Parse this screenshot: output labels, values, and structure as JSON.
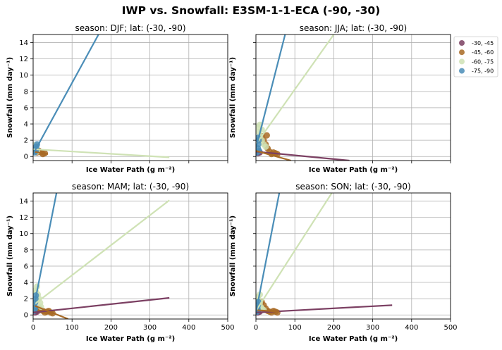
{
  "figure": {
    "title": "IWP vs. Snowfall: E3SM-1-1-ECA  (-90, -30)"
  },
  "legend": {
    "placement": "right",
    "entries": [
      {
        "label": "-30, -45",
        "color": "#7b3f62"
      },
      {
        "label": "-45, -60",
        "color": "#a86a25"
      },
      {
        "label": "-60, -75",
        "color": "#cfe2b5"
      },
      {
        "label": "-75, -90",
        "color": "#4a8db7"
      }
    ]
  },
  "chart_data": [
    {
      "type": "scatter",
      "title": "season: DJF; lat: (-30, -90)",
      "xlabel": "Ice Water Path (g m⁻²)",
      "ylabel": "Snowfall (mm day⁻¹)",
      "xlim": [
        0,
        500
      ],
      "ylim": [
        -0.5,
        15
      ],
      "xticks": [
        0,
        100,
        200,
        300,
        400,
        500
      ],
      "yticks": [
        0,
        2,
        4,
        6,
        8,
        10,
        12,
        14
      ],
      "grid": true,
      "show_xticklabels": false,
      "show_yticklabels": true,
      "series": [
        {
          "color": "#a86a25",
          "points": [
            [
              10,
              0.5
            ],
            [
              15,
              0.7
            ],
            [
              20,
              0.5
            ],
            [
              25,
              0.3
            ],
            [
              30,
              0.4
            ]
          ],
          "fit": [
            [
              0,
              0.6
            ],
            [
              38,
              0.3
            ]
          ]
        },
        {
          "color": "#cfe2b5",
          "points": [
            [
              3,
              0.8
            ],
            [
              5,
              1.4
            ],
            [
              8,
              1.1
            ],
            [
              10,
              0.6
            ]
          ],
          "fit": [
            [
              0,
              0.9
            ],
            [
              350,
              -0.1
            ]
          ]
        },
        {
          "color": "#4a8db7",
          "points": [
            [
              4,
              0.5
            ],
            [
              6,
              0.9
            ],
            [
              8,
              1.2
            ],
            [
              10,
              1.5
            ],
            [
              7,
              0.7
            ]
          ],
          "fit": [
            [
              0,
              0.3
            ],
            [
              168,
              15
            ]
          ]
        }
      ]
    },
    {
      "type": "scatter",
      "title": "season: JJA; lat: (-30, -90)",
      "xlabel": "Ice Water Path (g m⁻²)",
      "ylabel": "Snowfall (mm day⁻¹)",
      "xlim": [
        0,
        500
      ],
      "ylim": [
        -0.5,
        15
      ],
      "xticks": [
        0,
        100,
        200,
        300,
        400,
        500
      ],
      "yticks": [
        0,
        2,
        4,
        6,
        8,
        10,
        12,
        14
      ],
      "grid": true,
      "show_xticklabels": false,
      "show_yticklabels": false,
      "series": [
        {
          "color": "#7b3f62",
          "points": [
            [
              5,
              0.4
            ],
            [
              10,
              0.5
            ]
          ],
          "fit": [
            [
              0,
              0.6
            ],
            [
              240,
              -0.5
            ]
          ]
        },
        {
          "color": "#a86a25",
          "points": [
            [
              15,
              2.5
            ],
            [
              20,
              2.0
            ],
            [
              25,
              1.5
            ],
            [
              30,
              1.0
            ],
            [
              35,
              0.6
            ],
            [
              40,
              0.3
            ],
            [
              45,
              0.5
            ],
            [
              50,
              0.4
            ],
            [
              55,
              0.3
            ],
            [
              28,
              2.6
            ]
          ],
          "fit": [
            [
              0,
              0.7
            ],
            [
              90,
              -0.5
            ]
          ]
        },
        {
          "color": "#cfe2b5",
          "points": [
            [
              5,
              3.6
            ],
            [
              8,
              3.0
            ],
            [
              10,
              2.5
            ],
            [
              15,
              2.0
            ],
            [
              20,
              1.5
            ],
            [
              25,
              1.2
            ],
            [
              10,
              3.9
            ],
            [
              15,
              3.3
            ]
          ],
          "fit": [
            [
              0,
              1.5
            ],
            [
              200,
              15
            ]
          ]
        },
        {
          "color": "#4a8db7",
          "points": [
            [
              3,
              0.5
            ],
            [
              5,
              1.0
            ],
            [
              6,
              1.5
            ],
            [
              7,
              2.0
            ],
            [
              5,
              2.3
            ],
            [
              8,
              0.7
            ]
          ],
          "fit": [
            [
              0,
              1.0
            ],
            [
              75,
              15
            ]
          ]
        }
      ]
    },
    {
      "type": "scatter",
      "title": "season: MAM; lat: (-30, -90)",
      "xlabel": "Ice Water Path (g m⁻²)",
      "ylabel": "Snowfall (mm day⁻¹)",
      "xlim": [
        0,
        500
      ],
      "ylim": [
        -0.5,
        15
      ],
      "xticks": [
        0,
        100,
        200,
        300,
        400,
        500
      ],
      "yticks": [
        0,
        2,
        4,
        6,
        8,
        10,
        12,
        14
      ],
      "grid": true,
      "show_xticklabels": true,
      "show_yticklabels": true,
      "series": [
        {
          "color": "#7b3f62",
          "points": [
            [
              5,
              0.3
            ],
            [
              10,
              0.4
            ]
          ],
          "fit": [
            [
              0,
              0.3
            ],
            [
              350,
              2.1
            ]
          ]
        },
        {
          "color": "#a86a25",
          "points": [
            [
              15,
              0.8
            ],
            [
              20,
              0.6
            ],
            [
              25,
              0.5
            ],
            [
              30,
              0.3
            ],
            [
              35,
              0.4
            ],
            [
              40,
              0.5
            ],
            [
              45,
              0.3
            ],
            [
              50,
              0.2
            ]
          ],
          "fit": [
            [
              0,
              1.2
            ],
            [
              90,
              -0.5
            ]
          ]
        },
        {
          "color": "#cfe2b5",
          "points": [
            [
              5,
              3.0
            ],
            [
              10,
              3.5
            ],
            [
              12,
              2.5
            ],
            [
              15,
              2.0
            ],
            [
              18,
              1.5
            ],
            [
              20,
              1.0
            ],
            [
              8,
              2.8
            ],
            [
              10,
              1.8
            ]
          ],
          "fit": [
            [
              0,
              1.2
            ],
            [
              350,
              14.1
            ]
          ]
        },
        {
          "color": "#4a8db7",
          "points": [
            [
              3,
              0.5
            ],
            [
              4,
              1.0
            ],
            [
              5,
              1.5
            ],
            [
              6,
              2.0
            ],
            [
              7,
              2.4
            ],
            [
              5,
              0.8
            ]
          ],
          "fit": [
            [
              0,
              0.5
            ],
            [
              60,
              15
            ]
          ]
        }
      ]
    },
    {
      "type": "scatter",
      "title": "season: SON; lat: (-30, -90)",
      "xlabel": "Ice Water Path (g m⁻²)",
      "ylabel": "Snowfall (mm day⁻¹)",
      "xlim": [
        0,
        500
      ],
      "ylim": [
        -0.5,
        15
      ],
      "xticks": [
        0,
        100,
        200,
        300,
        400,
        500
      ],
      "yticks": [
        0,
        2,
        4,
        6,
        8,
        10,
        12,
        14
      ],
      "grid": true,
      "show_xticklabels": true,
      "show_yticklabels": false,
      "series": [
        {
          "color": "#7b3f62",
          "points": [
            [
              5,
              0.3
            ],
            [
              10,
              0.4
            ]
          ],
          "fit": [
            [
              0,
              0.3
            ],
            [
              350,
              1.2
            ]
          ]
        },
        {
          "color": "#a86a25",
          "points": [
            [
              15,
              1.6
            ],
            [
              20,
              1.2
            ],
            [
              25,
              0.8
            ],
            [
              30,
              0.5
            ],
            [
              35,
              0.4
            ],
            [
              40,
              0.3
            ],
            [
              45,
              0.5
            ],
            [
              50,
              0.4
            ],
            [
              55,
              0.3
            ]
          ],
          "fit": [
            [
              0,
              0.6
            ],
            [
              60,
              0.4
            ]
          ]
        },
        {
          "color": "#cfe2b5",
          "points": [
            [
              5,
              2.2
            ],
            [
              8,
              1.8
            ],
            [
              10,
              1.5
            ],
            [
              12,
              1.0
            ],
            [
              15,
              0.8
            ],
            [
              20,
              0.6
            ],
            [
              10,
              2.5
            ]
          ],
          "fit": [
            [
              0,
              0.5
            ],
            [
              195,
              15
            ]
          ]
        },
        {
          "color": "#4a8db7",
          "points": [
            [
              3,
              0.4
            ],
            [
              4,
              0.8
            ],
            [
              5,
              1.2
            ],
            [
              6,
              1.6
            ],
            [
              5,
              0.5
            ]
          ],
          "fit": [
            [
              0,
              0.3
            ],
            [
              60,
              15
            ]
          ]
        }
      ]
    }
  ]
}
